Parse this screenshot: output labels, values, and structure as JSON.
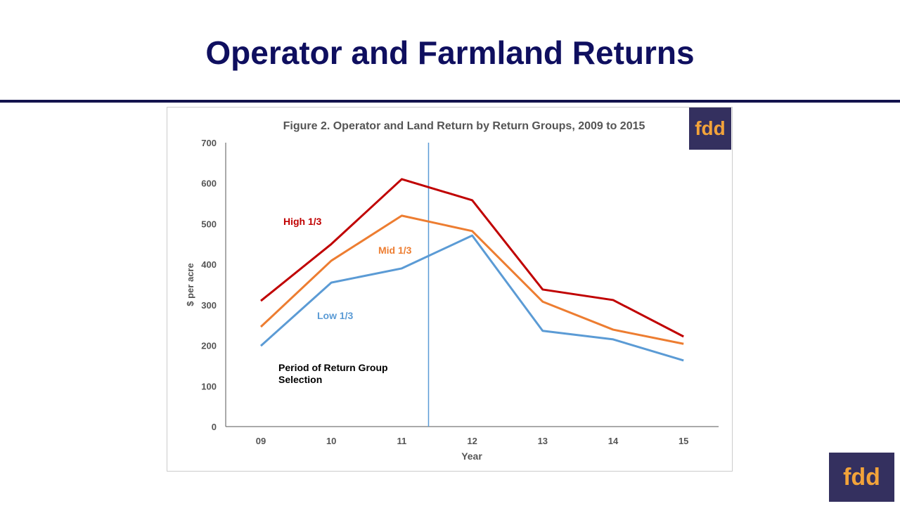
{
  "slide": {
    "title": "Operator and Farmland Returns",
    "logo_text": "fdd"
  },
  "colors": {
    "title": "#0f0f5f",
    "high": "#c00000",
    "mid": "#ed7d31",
    "low": "#5b9bd5",
    "logo_bg": "#34305f",
    "logo_text": "#f2a33a"
  },
  "chart_data": {
    "type": "line",
    "title": "Figure 2. Operator and Land Return by Return Groups, 2009 to 2015",
    "xlabel": "Year",
    "ylabel": "$ per acre",
    "categories": [
      "09",
      "10",
      "11",
      "12",
      "13",
      "14",
      "15"
    ],
    "ylim": [
      0,
      700
    ],
    "yticks": [
      0,
      100,
      200,
      300,
      400,
      500,
      600,
      700
    ],
    "grid": false,
    "series": [
      {
        "name": "High 1/3",
        "color": "#c00000",
        "values": [
          310,
          450,
          610,
          558,
          338,
          312,
          222
        ]
      },
      {
        "name": "Mid 1/3",
        "color": "#ed7d31",
        "values": [
          246,
          409,
          520,
          482,
          308,
          239,
          204
        ]
      },
      {
        "name": "Low 1/3",
        "color": "#5b9bd5",
        "values": [
          199,
          355,
          390,
          471,
          236,
          215,
          163
        ]
      }
    ],
    "annotation": {
      "text_line1": "Period of Return Group",
      "text_line2": "Selection",
      "divider_x": "between 11 and 12"
    }
  }
}
